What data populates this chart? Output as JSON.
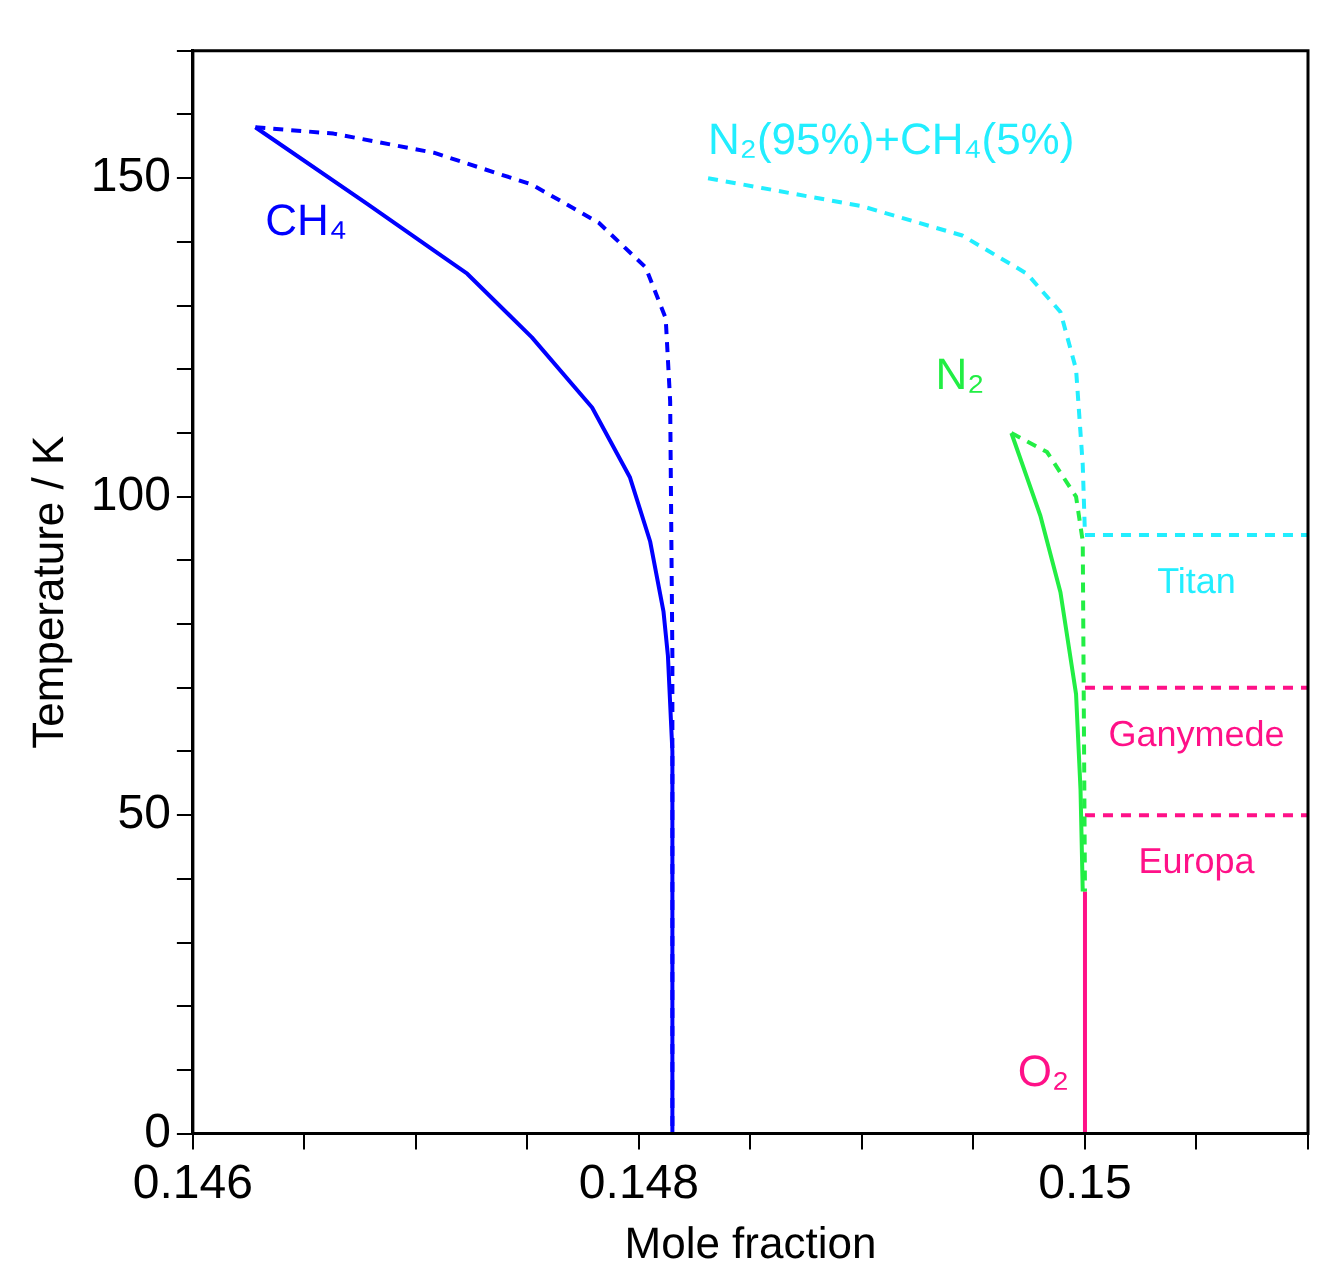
{
  "chart_data": {
    "type": "line",
    "xlabel": "Mole fraction",
    "ylabel": "Temperature / K",
    "xlim": [
      0.146,
      0.151
    ],
    "ylim": [
      0,
      170
    ],
    "xticks": [
      0.146,
      {
        "value": 0.1465,
        "label": null
      },
      {
        "value": 0.147,
        "label": null
      },
      {
        "value": 0.1475,
        "label": null
      },
      0.148,
      {
        "value": 0.1485,
        "label": null
      },
      {
        "value": 0.149,
        "label": null
      },
      {
        "value": 0.1495,
        "label": null
      },
      0.15,
      {
        "value": 0.1505,
        "label": null
      },
      {
        "value": 0.151,
        "label": null
      }
    ],
    "yticks": [
      0,
      {
        "value": 10,
        "label": null
      },
      {
        "value": 20,
        "label": null
      },
      {
        "value": 30,
        "label": null
      },
      {
        "value": 40,
        "label": null
      },
      50,
      {
        "value": 60,
        "label": null
      },
      {
        "value": 70,
        "label": null
      },
      {
        "value": 80,
        "label": null
      },
      {
        "value": 90,
        "label": null
      },
      100,
      {
        "value": 110,
        "label": null
      },
      {
        "value": 120,
        "label": null
      },
      {
        "value": 130,
        "label": null
      },
      {
        "value": 140,
        "label": null
      },
      150,
      {
        "value": 160,
        "label": null
      },
      {
        "value": 170,
        "label": null
      }
    ],
    "grid": false,
    "legend": false,
    "marker": "none",
    "series": [
      {
        "name": "CH₄",
        "color": "#0000ff",
        "line_style": "solid",
        "x": [
          0.14628,
          0.14678,
          0.14723,
          0.14752,
          0.14779,
          0.14796,
          0.14805,
          0.14811,
          0.14813,
          0.14815,
          0.14815
        ],
        "values": [
          158,
          146,
          135,
          125,
          114,
          103,
          93,
          82,
          75,
          60,
          0
        ]
      },
      {
        "color": "#0000ff",
        "line_style": "dashed",
        "x": [
          0.14628,
          0.14663,
          0.14708,
          0.14752,
          0.14782,
          0.14803,
          0.14812,
          0.14814,
          0.14815,
          0.14815
        ],
        "values": [
          158,
          157,
          154,
          149,
          143,
          136,
          128,
          115,
          75,
          0
        ]
      },
      {
        "name": "N₂(95%)+CH₄(5%)",
        "color": "#22eeff",
        "line_style": "dashed",
        "x": [
          0.14831,
          0.149,
          0.14945,
          0.14974,
          0.14989,
          0.14996,
          0.14999,
          0.15
        ],
        "values": [
          150,
          145.6,
          141,
          135,
          129,
          120,
          105,
          94
        ]
      },
      {
        "name": "N₂",
        "color": "#22ee44",
        "line_style": "solid",
        "x": [
          0.14967,
          0.1498,
          0.14989,
          0.14996,
          0.14998,
          0.14999
        ],
        "values": [
          110,
          97,
          85,
          69,
          54,
          38
        ]
      },
      {
        "color": "#22ee44",
        "line_style": "dashed",
        "x": [
          0.14967,
          0.14983,
          0.14996,
          0.14999,
          0.15
        ],
        "values": [
          110,
          107,
          100,
          93,
          38
        ]
      },
      {
        "name": "O₂",
        "color": "#ff1188",
        "line_style": "solid",
        "x": [
          0.15,
          0.15
        ],
        "values": [
          0,
          38
        ]
      },
      {
        "name": "Titan",
        "color": "#22eeff",
        "line_style": "dashed",
        "x": [
          0.15,
          0.151
        ],
        "values": [
          94,
          94
        ]
      },
      {
        "name": "Ganymede",
        "color": "#ff1188",
        "line_style": "dashed",
        "x": [
          0.15,
          0.151
        ],
        "values": [
          70,
          70
        ]
      },
      {
        "name": "Europa",
        "color": "#ff1188",
        "line_style": "dashed",
        "x": [
          0.15,
          0.151
        ],
        "values": [
          50,
          50
        ]
      }
    ]
  }
}
